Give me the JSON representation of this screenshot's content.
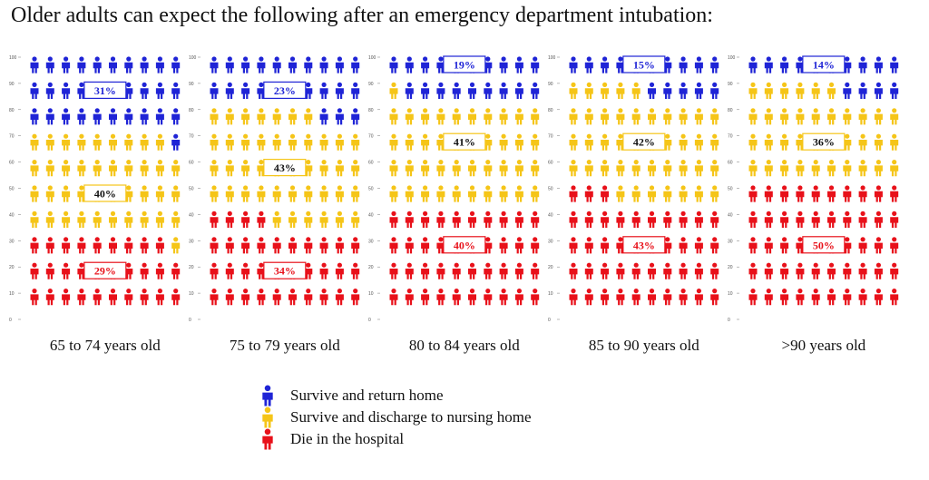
{
  "title": "Older adults can expect the following after an emergency department intubation:",
  "colors": {
    "home": "#1f24d6",
    "nursing": "#f5c518",
    "died": "#e8111a"
  },
  "legend": [
    {
      "key": "home",
      "label": "Survive and return home",
      "icon": "person-icon"
    },
    {
      "key": "nursing",
      "label": "Survive and discharge to nursing home",
      "icon": "person-icon"
    },
    {
      "key": "died",
      "label": "Die in the hospital",
      "icon": "person-icon"
    }
  ],
  "chart_data": {
    "type": "pictograph",
    "title": "Older adults can expect the following after an emergency department intubation:",
    "y_ticks": [
      0,
      10,
      20,
      30,
      40,
      50,
      60,
      70,
      80,
      90,
      100
    ],
    "ylim": [
      0,
      100
    ],
    "categories": [
      "65 to 74 years old",
      "75 to 79 years old",
      "80 to 84 years old",
      "85 to 90 years old",
      ">90 years old"
    ],
    "series": [
      {
        "name": "Survive and return home",
        "key": "home",
        "values": [
          31,
          23,
          19,
          15,
          14
        ]
      },
      {
        "name": "Survive and discharge to nursing home",
        "key": "nursing",
        "values": [
          40,
          43,
          41,
          42,
          36
        ]
      },
      {
        "name": "Die in the hospital",
        "key": "died",
        "values": [
          29,
          34,
          40,
          43,
          50
        ]
      }
    ],
    "data_labels": [
      {
        "home": "31%",
        "nursing": "40%",
        "died": "29%"
      },
      {
        "home": "23%",
        "nursing": "43%",
        "died": "34%"
      },
      {
        "home": "19%",
        "nursing": "41%",
        "died": "40%"
      },
      {
        "home": "15%",
        "nursing": "42%",
        "died": "43%"
      },
      {
        "home": "14%",
        "nursing": "36%",
        "died": "50%"
      }
    ]
  }
}
